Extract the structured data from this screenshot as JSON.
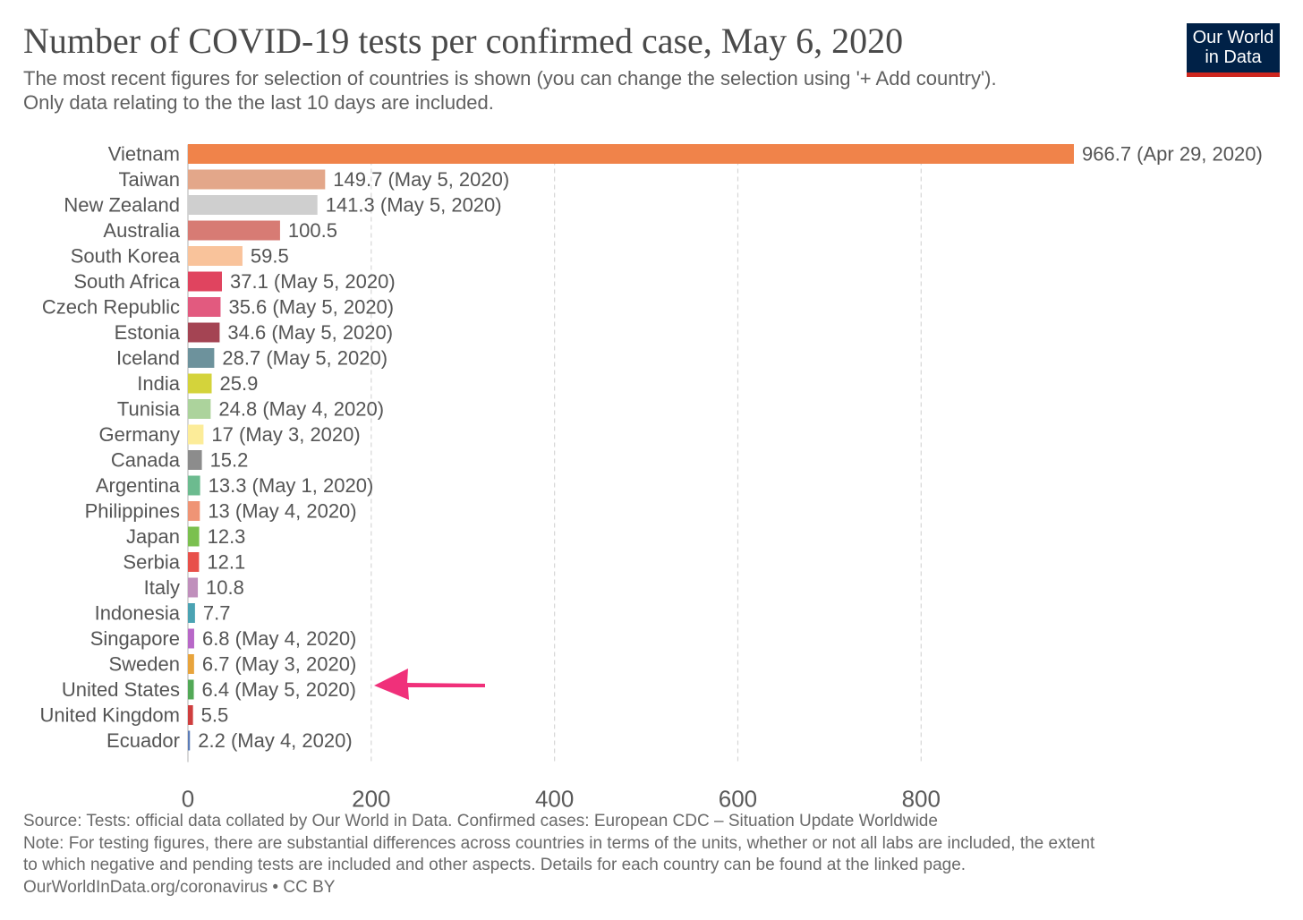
{
  "header": {
    "title": "Number of COVID-19 tests per confirmed case, May 6, 2020",
    "subtitle_line1": "The most recent figures for selection of countries is shown (you can change the selection using '+ Add country').",
    "subtitle_line2": "Only data relating to the the last 10 days are included."
  },
  "logo": {
    "line1": "Our World",
    "line2": "in Data"
  },
  "chart_data": {
    "type": "bar",
    "orientation": "horizontal",
    "categories": [
      "Vietnam",
      "Taiwan",
      "New Zealand",
      "Australia",
      "South Korea",
      "South Africa",
      "Czech Republic",
      "Estonia",
      "Iceland",
      "India",
      "Tunisia",
      "Germany",
      "Canada",
      "Argentina",
      "Philippines",
      "Japan",
      "Serbia",
      "Italy",
      "Indonesia",
      "Singapore",
      "Sweden",
      "United States",
      "United Kingdom",
      "Ecuador"
    ],
    "values": [
      966.7,
      149.7,
      141.3,
      100.5,
      59.5,
      37.1,
      35.6,
      34.6,
      28.7,
      25.9,
      24.8,
      17,
      15.2,
      13.3,
      13,
      12.3,
      12.1,
      10.8,
      7.7,
      6.8,
      6.7,
      6.4,
      5.5,
      2.2
    ],
    "value_labels": [
      "966.7 (Apr 29, 2020)",
      "149.7 (May 5, 2020)",
      "141.3 (May 5, 2020)",
      "100.5",
      "59.5",
      "37.1 (May 5, 2020)",
      "35.6 (May 5, 2020)",
      "34.6 (May 5, 2020)",
      "28.7 (May 5, 2020)",
      "25.9",
      "24.8 (May 4, 2020)",
      "17 (May 3, 2020)",
      "15.2",
      "13.3 (May 1, 2020)",
      "13 (May 4, 2020)",
      "12.3",
      "12.1",
      "10.8",
      "7.7",
      "6.8 (May 4, 2020)",
      "6.7 (May 3, 2020)",
      "6.4 (May 5, 2020)",
      "5.5",
      "2.2 (May 4, 2020)"
    ],
    "colors": [
      "#f0834a",
      "#e3a78a",
      "#cfcfcf",
      "#d77b74",
      "#f9c39b",
      "#e0445f",
      "#e25a7f",
      "#a44453",
      "#6d929c",
      "#d4d33b",
      "#acd39c",
      "#fcec99",
      "#8c8c8c",
      "#6cbb8f",
      "#ef9475",
      "#7bc04f",
      "#e8504a",
      "#c08fbc",
      "#4ba3b3",
      "#b868c8",
      "#e8a43c",
      "#52a957",
      "#cf3e3e",
      "#5b7cb8"
    ],
    "xlim": [
      0,
      966.7
    ],
    "xticks": [
      "0",
      "200",
      "400",
      "600",
      "800"
    ],
    "grid": true,
    "annotation": {
      "type": "arrow",
      "target": "United States",
      "color": "#f0307a"
    }
  },
  "footer": {
    "source": "Source: Tests: official data collated by Our World in Data. Confirmed cases: European CDC – Situation Update Worldwide",
    "note_line1": "Note: For testing figures, there are substantial differences across countries in terms of the units, whether or not all labs are included, the extent",
    "note_line2": "to which negative and pending tests are included and other aspects. Details for each country can be found at the linked page.",
    "credit": "OurWorldInData.org/coronavirus • CC BY"
  }
}
